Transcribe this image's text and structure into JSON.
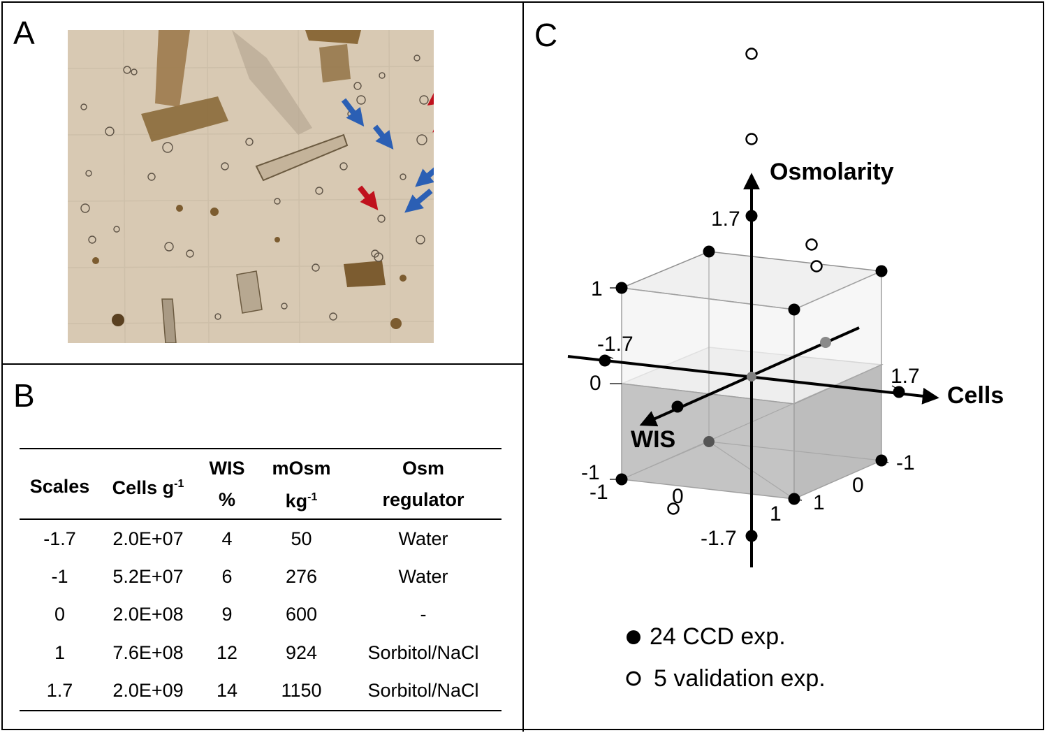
{
  "panels": {
    "a": "A",
    "b": "B",
    "c": "C"
  },
  "micrograph": {
    "background_color": "#d8c9b3",
    "particle_color": "#8b6a3a",
    "arrow_colors": [
      "#c0121e",
      "#2b5fb4"
    ]
  },
  "table": {
    "header_row1": {
      "scales": "Scales",
      "cells": "Cells g",
      "cells_sup": "-1",
      "wis": "WIS",
      "mosm": "mOsm",
      "osm": "Osm"
    },
    "header_row2": {
      "wis": "%",
      "mosm": "kg",
      "mosm_sup": "-1",
      "osm": "regulator"
    },
    "rows": [
      {
        "scale": "-1.7",
        "cells": "2.0E+07",
        "wis": "4",
        "mosm": "50",
        "osm": "Water"
      },
      {
        "scale": "-1",
        "cells": "5.2E+07",
        "wis": "6",
        "mosm": "276",
        "osm": "Water"
      },
      {
        "scale": "0",
        "cells": "2.0E+08",
        "wis": "9",
        "mosm": "600",
        "osm": "-"
      },
      {
        "scale": "1",
        "cells": "7.6E+08",
        "wis": "12",
        "mosm": "924",
        "osm": "Sorbitol/NaCl"
      },
      {
        "scale": "1.7",
        "cells": "2.0E+09",
        "wis": "14",
        "mosm": "1150",
        "osm": "Sorbitol/NaCl"
      }
    ]
  },
  "chart_data": {
    "type": "scatter",
    "projection": "3d",
    "axes": {
      "x": {
        "label": "Cells",
        "ticks": [
          "-1.7",
          "-1",
          "0",
          "1",
          "1.7"
        ]
      },
      "y": {
        "label": "WIS",
        "ticks": [
          "-1",
          "0",
          "1"
        ]
      },
      "z": {
        "label": "Osmolarity",
        "ticks": [
          "-1.7",
          "0",
          "1",
          "1.7"
        ]
      }
    },
    "tick_labels": {
      "osm_top": "1.7",
      "osm_one": "1",
      "osm_zero": "0",
      "osm_bottom": "-1.7",
      "cells_neg": "-1.7",
      "cells_pos": "1.7",
      "corner_left_a": "-1",
      "corner_left_b": "-1",
      "front_zero": "0",
      "front_one": "1",
      "right_one": "1",
      "right_zero": "0",
      "right_neg": "-1"
    },
    "series": [
      {
        "name": "24 CCD exp.",
        "marker": "filled",
        "points": [
          {
            "cells": -1,
            "wis": -1,
            "osm": -1
          },
          {
            "cells": 1,
            "wis": -1,
            "osm": -1
          },
          {
            "cells": -1,
            "wis": 1,
            "osm": -1
          },
          {
            "cells": 1,
            "wis": 1,
            "osm": -1
          },
          {
            "cells": -1,
            "wis": -1,
            "osm": 1
          },
          {
            "cells": 1,
            "wis": -1,
            "osm": 1
          },
          {
            "cells": -1,
            "wis": 1,
            "osm": 1
          },
          {
            "cells": 1,
            "wis": 1,
            "osm": 1
          },
          {
            "cells": -1.7,
            "wis": 0,
            "osm": 0
          },
          {
            "cells": 1.7,
            "wis": 0,
            "osm": 0
          },
          {
            "cells": 0,
            "wis": -1.7,
            "osm": 0
          },
          {
            "cells": 0,
            "wis": 1.7,
            "osm": 0
          },
          {
            "cells": 0,
            "wis": 0,
            "osm": -1.7
          },
          {
            "cells": 0,
            "wis": 0,
            "osm": 1.7
          },
          {
            "cells": 0,
            "wis": 0,
            "osm": 0
          }
        ]
      },
      {
        "name": "5 validation exp.",
        "marker": "open",
        "points": [
          {
            "cells": 0,
            "wis": 0,
            "osm": 3.3
          },
          {
            "cells": 0,
            "wis": 0,
            "osm": 2.5
          },
          {
            "cells": 0.6,
            "wis": 1.9,
            "osm": 0.9
          },
          {
            "cells": 0.7,
            "wis": 1.9,
            "osm": 0.7
          },
          {
            "cells": -0.9,
            "wis": -1.6,
            "osm": -1.1
          }
        ]
      }
    ],
    "legend": {
      "position": "bottom",
      "items": [
        "24 CCD exp.",
        "5 validation exp."
      ]
    }
  }
}
